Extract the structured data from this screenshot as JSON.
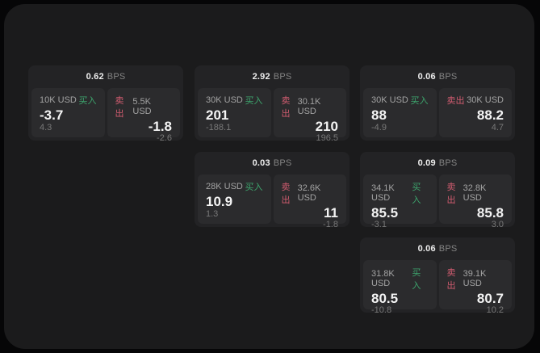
{
  "labels": {
    "bps_unit": "BPS",
    "buy": "买入",
    "sell": "卖出"
  },
  "colors": {
    "buy_green": "#3da56d",
    "sell_red": "#d15c70",
    "surface": "#1b1b1c",
    "card": "#232325",
    "tile": "#2b2b2d"
  },
  "cards": [
    {
      "row": 1,
      "col": 1,
      "bps": "0.62",
      "buy": {
        "size": "10K USD",
        "price": "-3.7",
        "change": "4.3"
      },
      "sell": {
        "size": "5.5K USD",
        "price": "-1.8",
        "change": "-2.6"
      }
    },
    {
      "row": 1,
      "col": 2,
      "bps": "2.92",
      "buy": {
        "size": "30K USD",
        "price": "201",
        "change": "-188.1"
      },
      "sell": {
        "size": "30.1K USD",
        "price": "210",
        "change": "196.5"
      }
    },
    {
      "row": 1,
      "col": 3,
      "bps": "0.06",
      "buy": {
        "size": "30K USD",
        "price": "88",
        "change": "-4.9"
      },
      "sell": {
        "size": "30K USD",
        "price": "88.2",
        "change": "4.7"
      }
    },
    {
      "row": 2,
      "col": 2,
      "bps": "0.03",
      "buy": {
        "size": "28K USD",
        "price": "10.9",
        "change": "1.3"
      },
      "sell": {
        "size": "32.6K USD",
        "price": "11",
        "change": "-1.8"
      }
    },
    {
      "row": 2,
      "col": 3,
      "bps": "0.09",
      "buy": {
        "size": "34.1K USD",
        "price": "85.5",
        "change": "-3.1"
      },
      "sell": {
        "size": "32.8K USD",
        "price": "85.8",
        "change": "3.0"
      }
    },
    {
      "row": 3,
      "col": 3,
      "bps": "0.06",
      "buy": {
        "size": "31.8K USD",
        "price": "80.5",
        "change": "-10.8"
      },
      "sell": {
        "size": "39.1K USD",
        "price": "80.7",
        "change": "10.2"
      }
    }
  ]
}
